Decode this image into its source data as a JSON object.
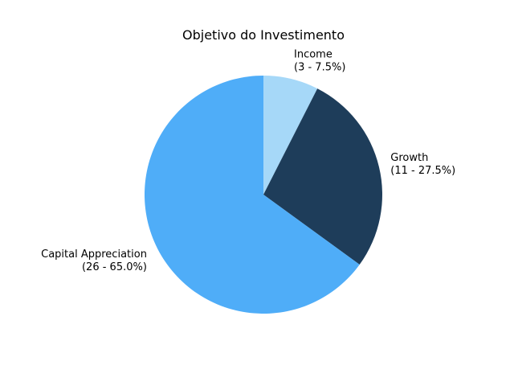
{
  "chart_data": {
    "type": "pie",
    "title": "Objetivo do Investimento",
    "start_angle_deg": 90,
    "direction": "clockwise",
    "legend": "none",
    "slices": [
      {
        "name": "Income",
        "value": 3,
        "percent": 7.5,
        "label_line1": "Income",
        "label_line2": "(3 - 7.5%)",
        "color": "#a6d8f8"
      },
      {
        "name": "Growth",
        "value": 11,
        "percent": 27.5,
        "label_line1": "Growth",
        "label_line2": "(11 - 27.5%)",
        "color": "#1e3d5a"
      },
      {
        "name": "Capital Appreciation",
        "value": 26,
        "percent": 65.0,
        "label_line1": "Capital Appreciation",
        "label_line2": "(26 - 65.0%)",
        "color": "#4fadf8"
      }
    ]
  }
}
